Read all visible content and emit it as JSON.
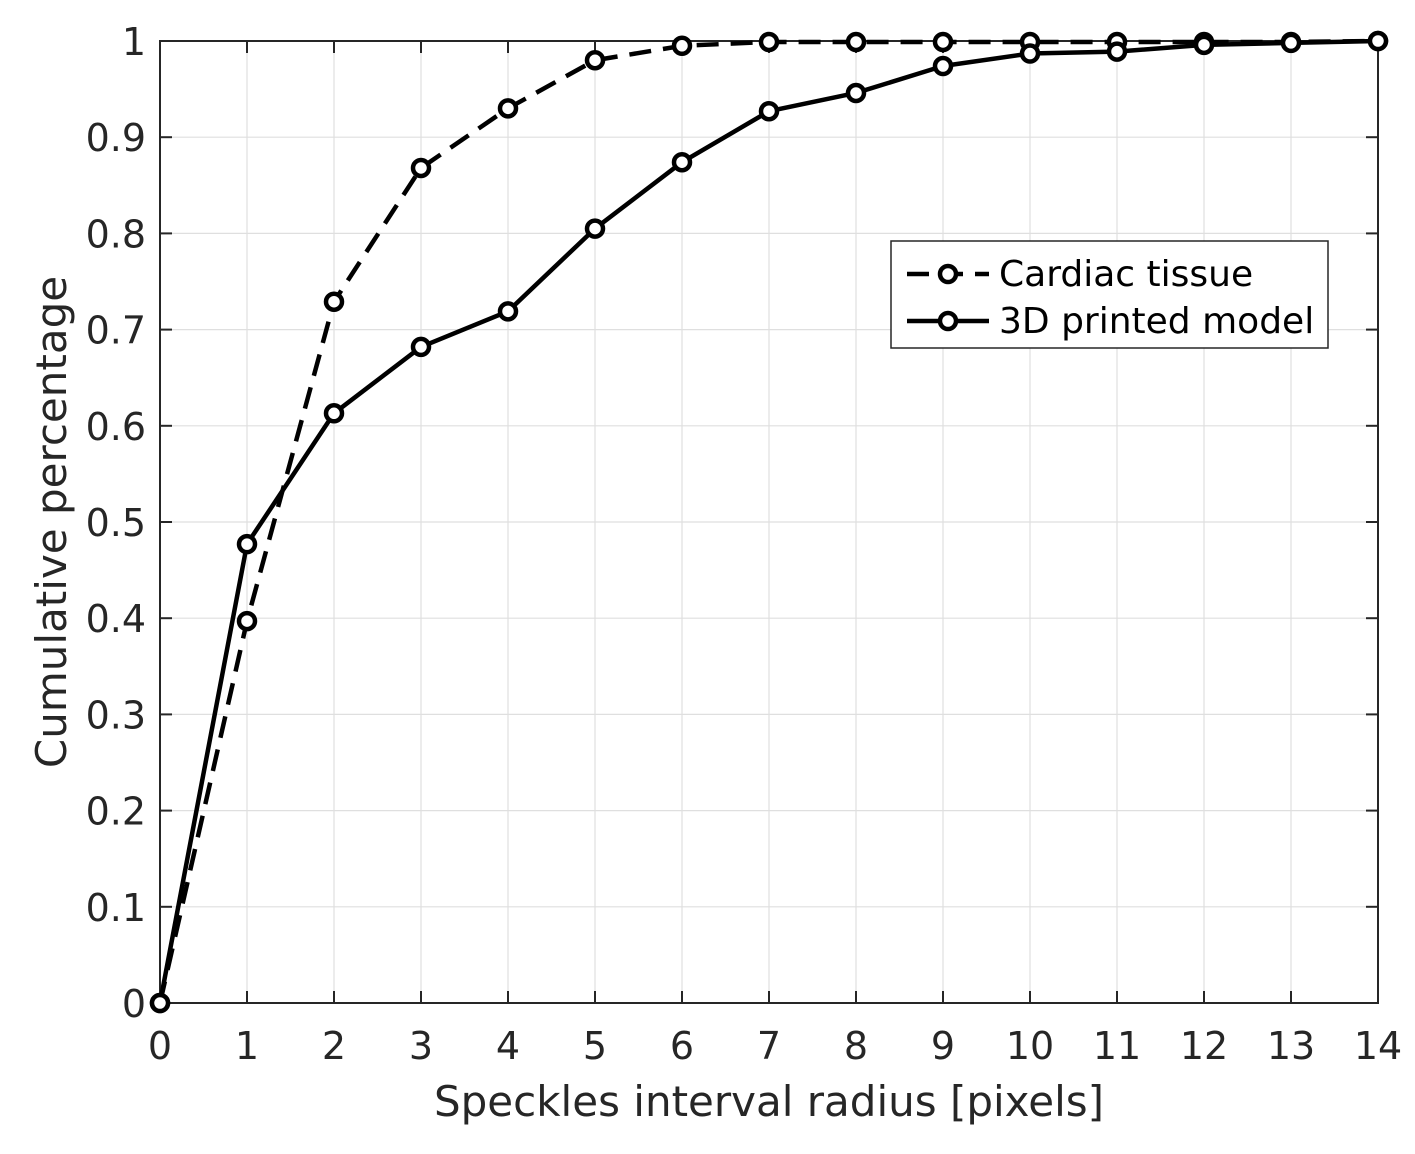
{
  "chart_data": {
    "type": "line",
    "title": "",
    "xlabel": "Speckles interval radius [pixels]",
    "ylabel": "Cumulative percentage",
    "xlim": [
      0,
      14
    ],
    "ylim": [
      0,
      1
    ],
    "grid": true,
    "legend_position": "upper-right",
    "x_ticks": [
      0,
      1,
      2,
      3,
      4,
      5,
      6,
      7,
      8,
      9,
      10,
      11,
      12,
      13,
      14
    ],
    "x_tick_labels": [
      "0",
      "1",
      "2",
      "3",
      "4",
      "5",
      "6",
      "7",
      "8",
      "9",
      "10",
      "11",
      "12",
      "13",
      "14"
    ],
    "y_ticks": [
      0,
      0.1,
      0.2,
      0.3,
      0.4,
      0.5,
      0.6,
      0.7,
      0.8,
      0.9,
      1
    ],
    "y_tick_labels": [
      "0",
      "0.1",
      "0.2",
      "0.3",
      "0.4",
      "0.5",
      "0.6",
      "0.7",
      "0.8",
      "0.9",
      "1"
    ],
    "x": [
      0,
      1,
      2,
      3,
      4,
      5,
      6,
      7,
      8,
      9,
      10,
      11,
      12,
      13,
      14
    ],
    "series": [
      {
        "name": "Cardiac tissue",
        "style": "dashed",
        "marker": "circle",
        "color": "#000000",
        "values": [
          0,
          0.397,
          0.729,
          0.868,
          0.93,
          0.98,
          0.995,
          0.999,
          0.999,
          0.999,
          0.999,
          0.999,
          0.999,
          0.999,
          1.0
        ]
      },
      {
        "name": "3D printed model",
        "style": "solid",
        "marker": "circle",
        "color": "#000000",
        "values": [
          0,
          0.477,
          0.613,
          0.682,
          0.719,
          0.805,
          0.874,
          0.927,
          0.946,
          0.974,
          0.987,
          0.989,
          0.996,
          0.998,
          1.0
        ]
      }
    ]
  },
  "colors": {
    "background": "#ffffff",
    "grid": "#dfdfdf",
    "axis": "#262626",
    "line": "#000000"
  }
}
